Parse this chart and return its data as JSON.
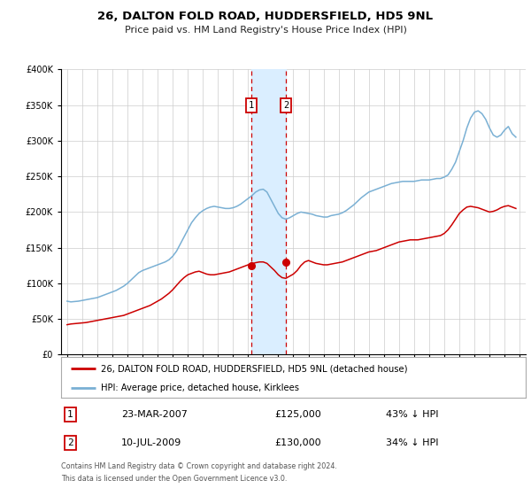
{
  "title": "26, DALTON FOLD ROAD, HUDDERSFIELD, HD5 9NL",
  "subtitle": "Price paid vs. HM Land Registry's House Price Index (HPI)",
  "legend_line1": "26, DALTON FOLD ROAD, HUDDERSFIELD, HD5 9NL (detached house)",
  "legend_line2": "HPI: Average price, detached house, Kirklees",
  "transaction1_label": "1",
  "transaction1_date": "23-MAR-2007",
  "transaction1_price": "£125,000",
  "transaction1_hpi": "43% ↓ HPI",
  "transaction1_year": 2007.22,
  "transaction1_value": 125000,
  "transaction2_label": "2",
  "transaction2_date": "10-JUL-2009",
  "transaction2_price": "£130,000",
  "transaction2_hpi": "34% ↓ HPI",
  "transaction2_year": 2009.52,
  "transaction2_value": 130000,
  "footer_line1": "Contains HM Land Registry data © Crown copyright and database right 2024.",
  "footer_line2": "This data is licensed under the Open Government Licence v3.0.",
  "red_color": "#cc0000",
  "blue_color": "#7ab0d4",
  "highlight_color": "#daeeff",
  "grid_color": "#cccccc",
  "background_color": "#ffffff",
  "hpi_data_x": [
    1995.0,
    1995.25,
    1995.5,
    1995.75,
    1996.0,
    1996.25,
    1996.5,
    1996.75,
    1997.0,
    1997.25,
    1997.5,
    1997.75,
    1998.0,
    1998.25,
    1998.5,
    1998.75,
    1999.0,
    1999.25,
    1999.5,
    1999.75,
    2000.0,
    2000.25,
    2000.5,
    2000.75,
    2001.0,
    2001.25,
    2001.5,
    2001.75,
    2002.0,
    2002.25,
    2002.5,
    2002.75,
    2003.0,
    2003.25,
    2003.5,
    2003.75,
    2004.0,
    2004.25,
    2004.5,
    2004.75,
    2005.0,
    2005.25,
    2005.5,
    2005.75,
    2006.0,
    2006.25,
    2006.5,
    2006.75,
    2007.0,
    2007.25,
    2007.5,
    2007.75,
    2008.0,
    2008.25,
    2008.5,
    2008.75,
    2009.0,
    2009.25,
    2009.5,
    2009.75,
    2010.0,
    2010.25,
    2010.5,
    2010.75,
    2011.0,
    2011.25,
    2011.5,
    2011.75,
    2012.0,
    2012.25,
    2012.5,
    2012.75,
    2013.0,
    2013.25,
    2013.5,
    2013.75,
    2014.0,
    2014.25,
    2014.5,
    2014.75,
    2015.0,
    2015.25,
    2015.5,
    2015.75,
    2016.0,
    2016.25,
    2016.5,
    2016.75,
    2017.0,
    2017.25,
    2017.5,
    2017.75,
    2018.0,
    2018.25,
    2018.5,
    2018.75,
    2019.0,
    2019.25,
    2019.5,
    2019.75,
    2020.0,
    2020.25,
    2020.5,
    2020.75,
    2021.0,
    2021.25,
    2021.5,
    2021.75,
    2022.0,
    2022.25,
    2022.5,
    2022.75,
    2023.0,
    2023.25,
    2023.5,
    2023.75,
    2024.0,
    2024.25,
    2024.5,
    2024.75
  ],
  "hpi_data_y": [
    75000,
    74000,
    74500,
    75000,
    76000,
    77000,
    78000,
    79000,
    80000,
    82000,
    84000,
    86000,
    88000,
    90000,
    93000,
    96000,
    100000,
    105000,
    110000,
    115000,
    118000,
    120000,
    122000,
    124000,
    126000,
    128000,
    130000,
    133000,
    138000,
    145000,
    155000,
    165000,
    175000,
    185000,
    192000,
    198000,
    202000,
    205000,
    207000,
    208000,
    207000,
    206000,
    205000,
    205000,
    206000,
    208000,
    211000,
    215000,
    219000,
    223000,
    228000,
    231000,
    232000,
    228000,
    218000,
    208000,
    198000,
    192000,
    190000,
    192000,
    195000,
    198000,
    200000,
    199000,
    198000,
    197000,
    195000,
    194000,
    193000,
    193000,
    195000,
    196000,
    197000,
    199000,
    202000,
    206000,
    210000,
    215000,
    220000,
    224000,
    228000,
    230000,
    232000,
    234000,
    236000,
    238000,
    240000,
    241000,
    242000,
    243000,
    243000,
    243000,
    243000,
    244000,
    245000,
    245000,
    245000,
    246000,
    247000,
    247000,
    249000,
    252000,
    260000,
    270000,
    285000,
    300000,
    318000,
    332000,
    340000,
    342000,
    338000,
    330000,
    318000,
    308000,
    305000,
    308000,
    315000,
    320000,
    310000,
    305000
  ],
  "price_data_x": [
    1995.0,
    1995.25,
    1995.5,
    1995.75,
    1996.0,
    1996.25,
    1996.5,
    1996.75,
    1997.0,
    1997.25,
    1997.5,
    1997.75,
    1998.0,
    1998.25,
    1998.5,
    1998.75,
    1999.0,
    1999.25,
    1999.5,
    1999.75,
    2000.0,
    2000.25,
    2000.5,
    2000.75,
    2001.0,
    2001.25,
    2001.5,
    2001.75,
    2002.0,
    2002.25,
    2002.5,
    2002.75,
    2003.0,
    2003.25,
    2003.5,
    2003.75,
    2004.0,
    2004.25,
    2004.5,
    2004.75,
    2005.0,
    2005.25,
    2005.5,
    2005.75,
    2006.0,
    2006.25,
    2006.5,
    2006.75,
    2007.0,
    2007.25,
    2007.5,
    2007.75,
    2008.0,
    2008.25,
    2008.5,
    2008.75,
    2009.0,
    2009.25,
    2009.5,
    2009.75,
    2010.0,
    2010.25,
    2010.5,
    2010.75,
    2011.0,
    2011.25,
    2011.5,
    2011.75,
    2012.0,
    2012.25,
    2012.5,
    2012.75,
    2013.0,
    2013.25,
    2013.5,
    2013.75,
    2014.0,
    2014.25,
    2014.5,
    2014.75,
    2015.0,
    2015.25,
    2015.5,
    2015.75,
    2016.0,
    2016.25,
    2016.5,
    2016.75,
    2017.0,
    2017.25,
    2017.5,
    2017.75,
    2018.0,
    2018.25,
    2018.5,
    2018.75,
    2019.0,
    2019.25,
    2019.5,
    2019.75,
    2020.0,
    2020.25,
    2020.5,
    2020.75,
    2021.0,
    2021.25,
    2021.5,
    2021.75,
    2022.0,
    2022.25,
    2022.5,
    2022.75,
    2023.0,
    2023.25,
    2023.5,
    2023.75,
    2024.0,
    2024.25,
    2024.5,
    2024.75
  ],
  "price_data_y": [
    42000,
    43000,
    43500,
    44000,
    44500,
    45000,
    46000,
    47000,
    48000,
    49000,
    50000,
    51000,
    52000,
    53000,
    54000,
    55000,
    57000,
    59000,
    61000,
    63000,
    65000,
    67000,
    69000,
    72000,
    75000,
    78000,
    82000,
    86000,
    91000,
    97000,
    103000,
    108000,
    112000,
    114000,
    116000,
    117000,
    115000,
    113000,
    112000,
    112000,
    113000,
    114000,
    115000,
    116000,
    118000,
    120000,
    122000,
    124000,
    126000,
    127500,
    129000,
    130000,
    130000,
    128000,
    123000,
    118000,
    112000,
    108000,
    107000,
    110000,
    113000,
    118000,
    125000,
    130000,
    132000,
    130000,
    128000,
    127000,
    126000,
    126000,
    127000,
    128000,
    129000,
    130000,
    132000,
    134000,
    136000,
    138000,
    140000,
    142000,
    144000,
    145000,
    146000,
    148000,
    150000,
    152000,
    154000,
    156000,
    158000,
    159000,
    160000,
    161000,
    161000,
    161000,
    162000,
    163000,
    164000,
    165000,
    166000,
    167000,
    170000,
    175000,
    182000,
    190000,
    198000,
    203000,
    207000,
    208000,
    207000,
    206000,
    204000,
    202000,
    200000,
    201000,
    203000,
    206000,
    208000,
    209000,
    207000,
    205000
  ]
}
